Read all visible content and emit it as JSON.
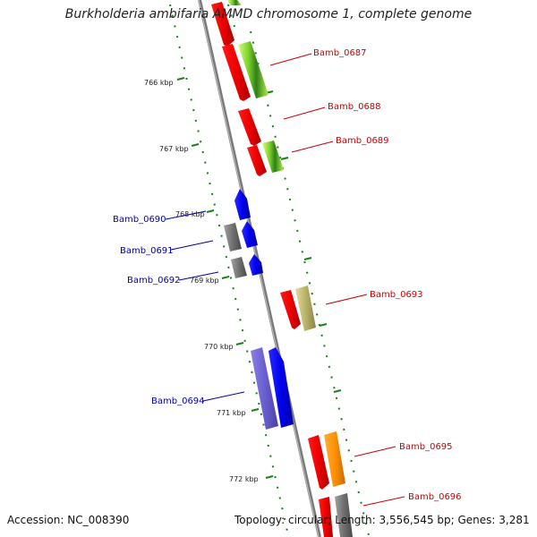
{
  "title": "Burkholderia ambifaria AMMD chromosome 1, complete genome",
  "accession": "Accession: NC_008390",
  "summary": "Topology: circular; Length: 3,556,545 bp; Genes: 3,281",
  "colors": {
    "backbone": "#888888",
    "tick": "#1a7f1a",
    "forward_label": "#cc0000",
    "reverse_label": "#0000aa"
  },
  "tick_labels": [
    "766 kbp",
    "767 kbp",
    "768 kbp",
    "769 kbp",
    "770 kbp",
    "771 kbp",
    "772 kbp"
  ],
  "genes": [
    {
      "name": "Bamb_0687",
      "strand": "forward"
    },
    {
      "name": "Bamb_0688",
      "strand": "forward"
    },
    {
      "name": "Bamb_0689",
      "strand": "forward"
    },
    {
      "name": "Bamb_0690",
      "strand": "reverse"
    },
    {
      "name": "Bamb_0691",
      "strand": "reverse"
    },
    {
      "name": "Bamb_0692",
      "strand": "reverse"
    },
    {
      "name": "Bamb_0693",
      "strand": "forward"
    },
    {
      "name": "Bamb_0694",
      "strand": "reverse"
    },
    {
      "name": "Bamb_0695",
      "strand": "forward"
    },
    {
      "name": "Bamb_0696",
      "strand": "forward"
    }
  ]
}
